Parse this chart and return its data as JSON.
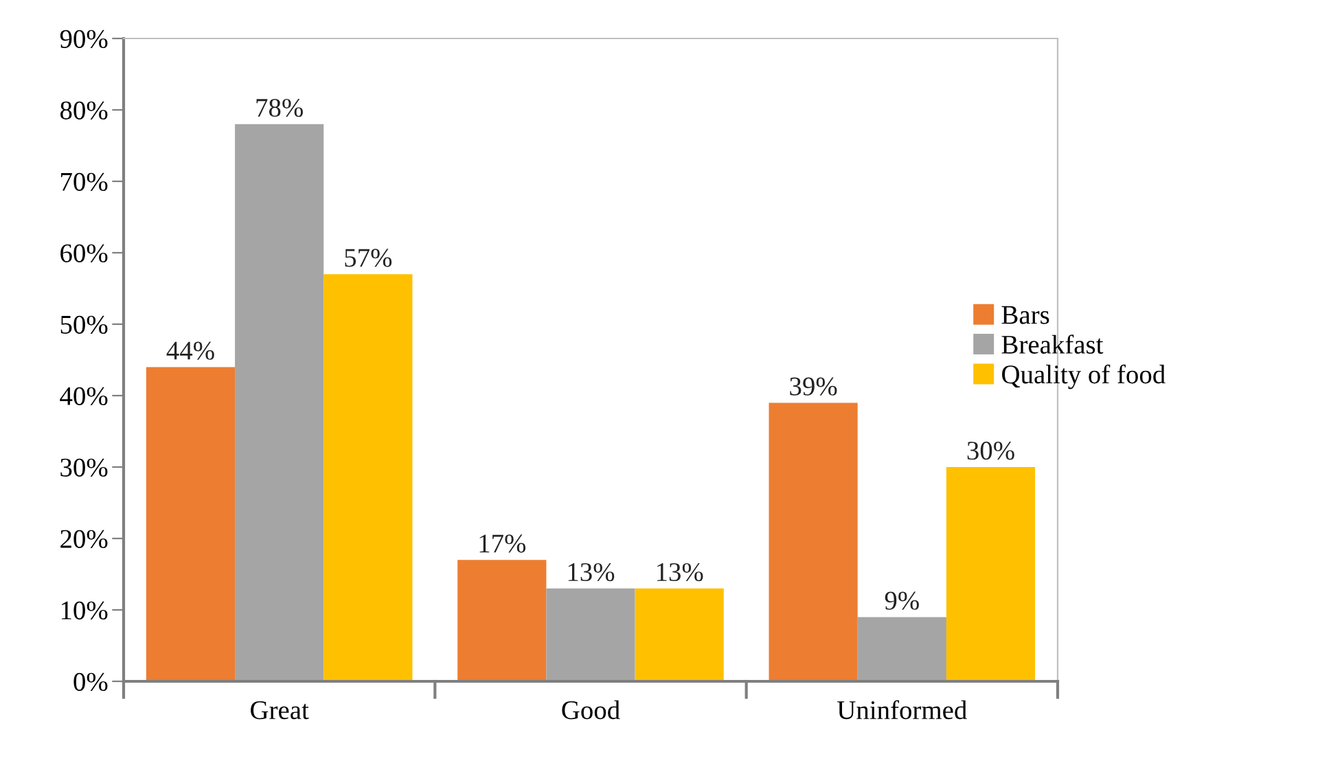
{
  "chart_data": {
    "type": "bar",
    "categories": [
      "Great",
      "Good",
      "Uninformed"
    ],
    "series": [
      {
        "name": "Bars",
        "color": "#ed7d31",
        "values": [
          44,
          17,
          39
        ],
        "value_labels": [
          "44%",
          "17%",
          "39%"
        ]
      },
      {
        "name": "Breakfast",
        "color": "#a5a5a5",
        "values": [
          78,
          13,
          9
        ],
        "value_labels": [
          "78%",
          "13%",
          "9%"
        ]
      },
      {
        "name": "Quality of food",
        "color": "#ffc000",
        "values": [
          57,
          13,
          30
        ],
        "value_labels": [
          "57%",
          "13%",
          "30%"
        ]
      }
    ],
    "ylim": [
      0,
      90
    ],
    "yticks": [
      {
        "value": 0,
        "label": "0%"
      },
      {
        "value": 10,
        "label": "10%"
      },
      {
        "value": 20,
        "label": "20%"
      },
      {
        "value": 30,
        "label": "30%"
      },
      {
        "value": 40,
        "label": "40%"
      },
      {
        "value": 50,
        "label": "50%"
      },
      {
        "value": 60,
        "label": "60%"
      },
      {
        "value": 70,
        "label": "70%"
      },
      {
        "value": 80,
        "label": "80%"
      },
      {
        "value": 90,
        "label": "90%"
      }
    ],
    "grid": false,
    "legend": "right"
  }
}
